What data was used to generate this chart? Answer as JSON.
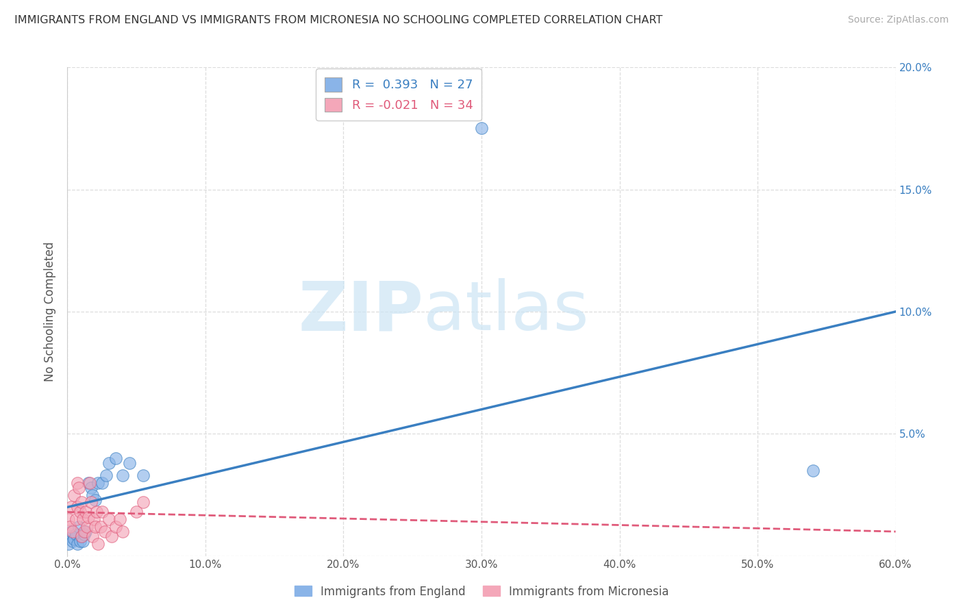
{
  "title": "IMMIGRANTS FROM ENGLAND VS IMMIGRANTS FROM MICRONESIA NO SCHOOLING COMPLETED CORRELATION CHART",
  "source": "Source: ZipAtlas.com",
  "ylabel": "No Schooling Completed",
  "xlim": [
    0.0,
    0.6
  ],
  "ylim": [
    0.0,
    0.2
  ],
  "xticks": [
    0.0,
    0.1,
    0.2,
    0.3,
    0.4,
    0.5,
    0.6
  ],
  "yticks": [
    0.0,
    0.05,
    0.1,
    0.15,
    0.2
  ],
  "xticklabels": [
    "0.0%",
    "10.0%",
    "20.0%",
    "30.0%",
    "40.0%",
    "50.0%",
    "60.0%"
  ],
  "yticklabels_right": [
    "",
    "5.0%",
    "10.0%",
    "15.0%",
    "20.0%"
  ],
  "england_color": "#8ab4e8",
  "micronesia_color": "#f4a7b9",
  "england_line_color": "#3a7fc1",
  "micronesia_line_color": "#e05a7a",
  "R_england": 0.393,
  "N_england": 27,
  "R_micronesia": -0.021,
  "N_micronesia": 34,
  "legend_label_england": "Immigrants from England",
  "legend_label_micronesia": "Immigrants from Micronesia",
  "england_line_x0": 0.0,
  "england_line_y0": 0.02,
  "england_line_x1": 0.6,
  "england_line_y1": 0.1,
  "micronesia_line_x0": 0.0,
  "micronesia_line_y0": 0.018,
  "micronesia_line_x1": 0.6,
  "micronesia_line_y1": 0.01,
  "england_x": [
    0.001,
    0.002,
    0.003,
    0.004,
    0.005,
    0.006,
    0.007,
    0.008,
    0.009,
    0.01,
    0.011,
    0.012,
    0.013,
    0.015,
    0.017,
    0.018,
    0.02,
    0.022,
    0.025,
    0.028,
    0.03,
    0.035,
    0.04,
    0.045,
    0.055,
    0.54,
    0.3
  ],
  "england_y": [
    0.005,
    0.008,
    0.01,
    0.006,
    0.007,
    0.009,
    0.005,
    0.012,
    0.006,
    0.008,
    0.006,
    0.009,
    0.01,
    0.03,
    0.028,
    0.025,
    0.023,
    0.03,
    0.03,
    0.033,
    0.038,
    0.04,
    0.033,
    0.038,
    0.033,
    0.035,
    0.175
  ],
  "micronesia_x": [
    0.001,
    0.002,
    0.003,
    0.004,
    0.005,
    0.006,
    0.007,
    0.007,
    0.008,
    0.009,
    0.01,
    0.01,
    0.011,
    0.012,
    0.013,
    0.014,
    0.015,
    0.016,
    0.017,
    0.018,
    0.019,
    0.02,
    0.021,
    0.022,
    0.024,
    0.025,
    0.027,
    0.03,
    0.032,
    0.035,
    0.038,
    0.04,
    0.05,
    0.055
  ],
  "micronesia_y": [
    0.015,
    0.012,
    0.02,
    0.01,
    0.025,
    0.015,
    0.03,
    0.02,
    0.028,
    0.018,
    0.022,
    0.008,
    0.015,
    0.01,
    0.018,
    0.012,
    0.016,
    0.03,
    0.022,
    0.008,
    0.015,
    0.012,
    0.018,
    0.005,
    0.012,
    0.018,
    0.01,
    0.015,
    0.008,
    0.012,
    0.015,
    0.01,
    0.018,
    0.022
  ],
  "watermark_zip": "ZIP",
  "watermark_atlas": "atlas",
  "background_color": "#ffffff",
  "grid_color": "#dddddd"
}
